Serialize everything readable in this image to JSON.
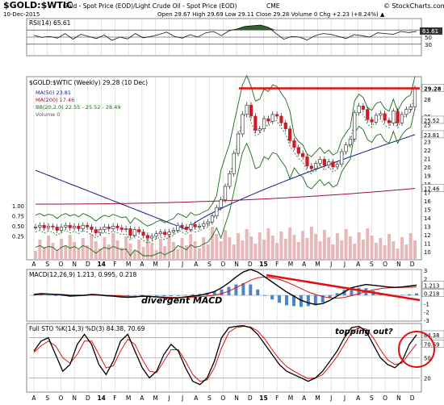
{
  "header": {
    "symbol": "$GOLD:$WTIC",
    "description": "Gold - Spot Price (EOD)/Light Crude Oil - Spot Price (EOD)",
    "exchange": "CME",
    "date": "10-Dec-2015",
    "quote": "Open 29.67  High 29.69  Low 29.11  Close 29.28  Volume 0  Chg +2.23 (+8.24%) ▲",
    "watermark": "© StockCharts.com"
  },
  "chart_data": [
    {
      "type": "line",
      "panel": "rsi",
      "title": "RSI(14) 65.61",
      "ylim": [
        0,
        100
      ],
      "yticks": [
        "70",
        "50",
        "30"
      ],
      "badge": "65.61",
      "levels": [
        70,
        50,
        30
      ],
      "values": [
        55,
        49,
        52,
        47,
        60,
        44,
        58,
        52,
        46,
        56,
        41,
        50,
        45,
        60,
        48,
        52,
        57,
        64,
        52,
        47,
        57,
        50,
        62,
        66,
        54,
        68,
        73,
        80,
        82,
        84,
        78,
        60,
        44,
        52,
        50,
        42,
        54,
        60,
        58,
        52,
        46,
        57,
        54,
        50,
        62,
        60,
        58,
        66,
        63,
        66
      ]
    },
    {
      "type": "candlestick",
      "panel": "price",
      "title": "$GOLD:$WTIC (Weekly) 29.28 (10 Dec)",
      "legend": [
        "MA(50) 23.81",
        "MA(200) 17.46",
        "BB(20,2.0) 22.55 - 25.52 - 28.49",
        "Volume 0"
      ],
      "yticks": [
        "29.28",
        "28",
        "26",
        "25.52",
        "25",
        "24",
        "23.81",
        "23",
        "22",
        "21",
        "20",
        "19",
        "18",
        "17.46",
        "17",
        "16",
        "15",
        "14",
        "13",
        "12",
        "11",
        "10"
      ],
      "volume_ticks": [
        "1.00",
        "0.75",
        "0.50",
        "0.25"
      ],
      "ylim": [
        9.5,
        30
      ],
      "x_ticks": [
        "A",
        "S",
        "O",
        "N",
        "D",
        "14",
        "F",
        "M",
        "A",
        "M",
        "J",
        "J",
        "A",
        "S",
        "O",
        "N",
        "D",
        "15",
        "F",
        "M",
        "A",
        "M",
        "J",
        "J",
        "A",
        "S",
        "O",
        "N",
        "D"
      ],
      "resistance_level": 29.28,
      "close": [
        12.9,
        13.1,
        12.8,
        13.0,
        12.9,
        12.5,
        12.9,
        13.1,
        12.8,
        13.0,
        12.7,
        13.1,
        12.9,
        12.6,
        12.2,
        12.6,
        12.9,
        12.7,
        13.0,
        12.8,
        12.6,
        12.7,
        11.9,
        12.6,
        12.3,
        11.9,
        11.6,
        11.8,
        12.1,
        12.3,
        12.0,
        12.3,
        12.5,
        13.1,
        12.9,
        12.6,
        13.2,
        12.9,
        13.0,
        13.3,
        13.5,
        14.2,
        15.2,
        16.1,
        17.7,
        19.2,
        21.6,
        23.9,
        26.2,
        27.3,
        26.0,
        24.3,
        24.5,
        25.7,
        25.4,
        26.2,
        26.0,
        25.2,
        24.5,
        23.1,
        22.3,
        21.6,
        21.2,
        20.1,
        19.8,
        20.4,
        20.9,
        20.2,
        20.6,
        20.0,
        20.3,
        21.8,
        22.6,
        23.3,
        26.4,
        27.2,
        26.8,
        25.6,
        25.3,
        26.1,
        26.3,
        25.5,
        25.2,
        26.6,
        25.2,
        26.2,
        26.8,
        27.1,
        29.28
      ],
      "ma50_endpoints": [
        [
          0,
          19.6
        ],
        [
          88,
          23.81
        ]
      ],
      "ma200_endpoints": [
        [
          0,
          15.6
        ],
        [
          88,
          17.46
        ]
      ],
      "bollinger_endpoints": [
        22.55,
        25.52,
        28.49
      ]
    },
    {
      "type": "line",
      "panel": "macd",
      "title": "MACD(12,26,9) 1.213, 0.995, 0.218",
      "ylim": [
        -3,
        3
      ],
      "yticks": [
        "3",
        "2",
        "1.213",
        "0.218",
        "-1",
        "-2",
        "-3"
      ],
      "annotation": "divergent MACD",
      "macd": [
        0.1,
        0.2,
        0.15,
        0.1,
        0.05,
        -0.1,
        -0.05,
        0.0,
        0.1,
        0.05,
        -0.05,
        -0.1,
        -0.2,
        -0.25,
        -0.2,
        -0.1,
        -0.15,
        -0.2,
        -0.3,
        -0.35,
        -0.3,
        -0.2,
        -0.1,
        0.0,
        0.2,
        0.45,
        0.9,
        1.5,
        2.2,
        2.8,
        3.1,
        2.8,
        2.2,
        1.6,
        1.0,
        0.4,
        -0.1,
        -0.6,
        -0.9,
        -1.1,
        -1.0,
        -0.6,
        -0.1,
        0.4,
        0.9,
        1.1,
        1.3,
        1.2,
        1.1,
        1.0,
        0.95,
        1.0,
        1.1,
        1.213
      ],
      "signal": [
        0.05,
        0.1,
        0.12,
        0.12,
        0.1,
        0.05,
        0.02,
        0.0,
        0.02,
        0.03,
        0.0,
        -0.03,
        -0.08,
        -0.13,
        -0.15,
        -0.14,
        -0.14,
        -0.16,
        -0.2,
        -0.24,
        -0.26,
        -0.25,
        -0.22,
        -0.17,
        -0.1,
        0.0,
        0.2,
        0.5,
        0.9,
        1.35,
        1.8,
        2.1,
        2.2,
        2.1,
        1.9,
        1.6,
        1.2,
        0.8,
        0.4,
        0.1,
        -0.15,
        -0.3,
        -0.35,
        -0.25,
        -0.05,
        0.2,
        0.45,
        0.65,
        0.8,
        0.88,
        0.92,
        0.95,
        0.97,
        0.995
      ]
    },
    {
      "type": "line",
      "panel": "stochastic",
      "title": "Full STO %K(14,3) %D(3) 84.38, 70.69",
      "ylim": [
        0,
        100
      ],
      "yticks": [
        "84.38",
        "70.69",
        "50",
        "20"
      ],
      "annotation": "topping out?",
      "x_ticks": [
        "A",
        "S",
        "O",
        "N",
        "D",
        "14",
        "F",
        "M",
        "A",
        "M",
        "J",
        "J",
        "A",
        "S",
        "O",
        "N",
        "D",
        "15",
        "F",
        "M",
        "A",
        "M",
        "J",
        "J",
        "A",
        "S",
        "O",
        "N",
        "D"
      ],
      "k": [
        60,
        75,
        80,
        55,
        30,
        40,
        70,
        85,
        70,
        40,
        25,
        45,
        75,
        85,
        60,
        35,
        20,
        30,
        55,
        70,
        60,
        35,
        15,
        10,
        20,
        45,
        80,
        95,
        97,
        98,
        95,
        85,
        70,
        55,
        40,
        30,
        25,
        20,
        15,
        20,
        30,
        45,
        60,
        80,
        95,
        97,
        90,
        70,
        50,
        40,
        35,
        45,
        70,
        84.38
      ],
      "d": [
        58,
        68,
        75,
        68,
        50,
        42,
        55,
        75,
        75,
        55,
        35,
        38,
        60,
        78,
        70,
        48,
        30,
        28,
        45,
        62,
        62,
        45,
        25,
        15,
        17,
        35,
        65,
        88,
        95,
        97,
        96,
        90,
        78,
        62,
        48,
        37,
        30,
        24,
        19,
        20,
        25,
        38,
        52,
        70,
        88,
        95,
        93,
        80,
        62,
        47,
        40,
        42,
        57,
        70.69
      ]
    }
  ]
}
